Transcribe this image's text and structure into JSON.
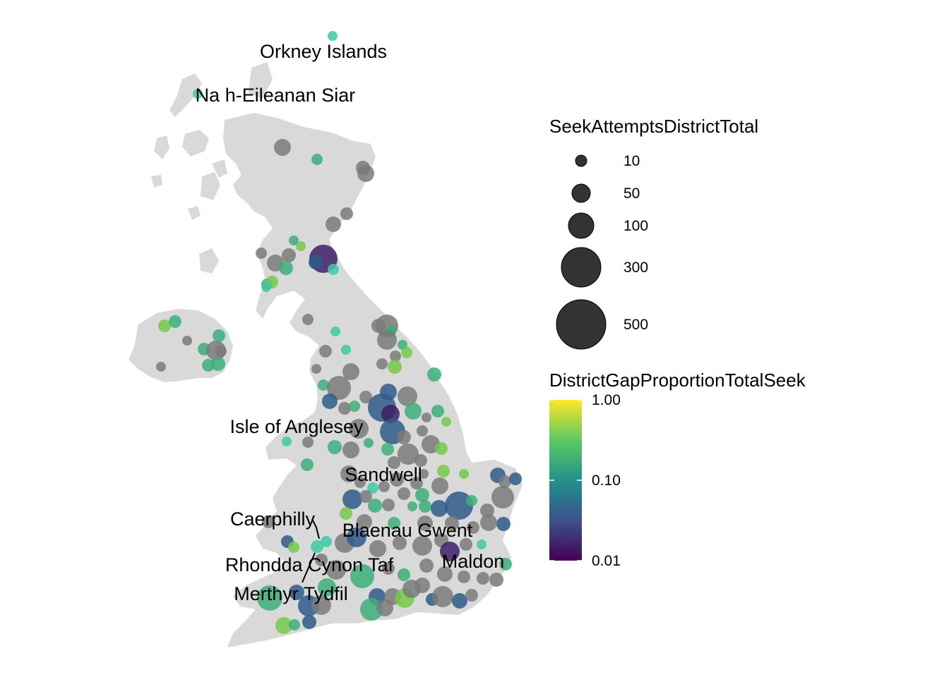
{
  "map": {
    "land_color": "#d9d9d9",
    "missing_color": "#7f7f7f",
    "labels": [
      {
        "text": "Orkney Islands"
      },
      {
        "text": "Na h-Eileanan Siar"
      },
      {
        "text": "Isle of Anglesey"
      },
      {
        "text": "Sandwell"
      },
      {
        "text": "Caerphilly"
      },
      {
        "text": "Blaenau Gwent"
      },
      {
        "text": "Rhondda Cynon Taf"
      },
      {
        "text": "Maldon"
      },
      {
        "text": "Merthyr Tydfil"
      }
    ]
  },
  "legend": {
    "size_title": "SeekAttemptsDistrictTotal",
    "size_items": [
      {
        "label": "10",
        "value": 10
      },
      {
        "label": "50",
        "value": 50
      },
      {
        "label": "100",
        "value": 100
      },
      {
        "label": "300",
        "value": 300
      },
      {
        "label": "500",
        "value": 500
      }
    ],
    "color_title": "DistrictGapProportionTotalSeek",
    "color_ticks": [
      {
        "label": "1.00",
        "value": 1.0
      },
      {
        "label": "0.10",
        "value": 0.1
      },
      {
        "label": "0.01",
        "value": 0.01
      }
    ],
    "viridis": [
      "#440154",
      "#3b528b",
      "#21918c",
      "#5ec962",
      "#fde725"
    ]
  },
  "chart_data": {
    "type": "scatter",
    "size_variable": "SeekAttemptsDistrictTotal",
    "color_variable": "DistrictGapProportionTotalSeek",
    "color_scale": "log10",
    "color_range": [
      0.01,
      1.0
    ],
    "size_range": [
      10,
      500
    ]
  }
}
